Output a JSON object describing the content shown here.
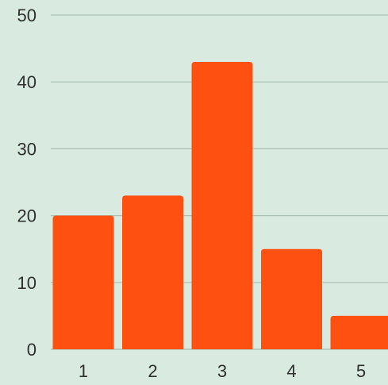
{
  "chart_data": {
    "type": "bar",
    "categories": [
      "1",
      "2",
      "3",
      "4",
      "5"
    ],
    "values": [
      20,
      23,
      43,
      15,
      5
    ],
    "y_ticks": [
      "0",
      "10",
      "20",
      "30",
      "40",
      "50"
    ],
    "ylim": [
      0,
      50
    ],
    "grid": true,
    "colors": {
      "background": "#d9ebe1",
      "bar": "#fe5011",
      "grid": "#a9bfb4",
      "text": "#2f2f2f"
    }
  }
}
